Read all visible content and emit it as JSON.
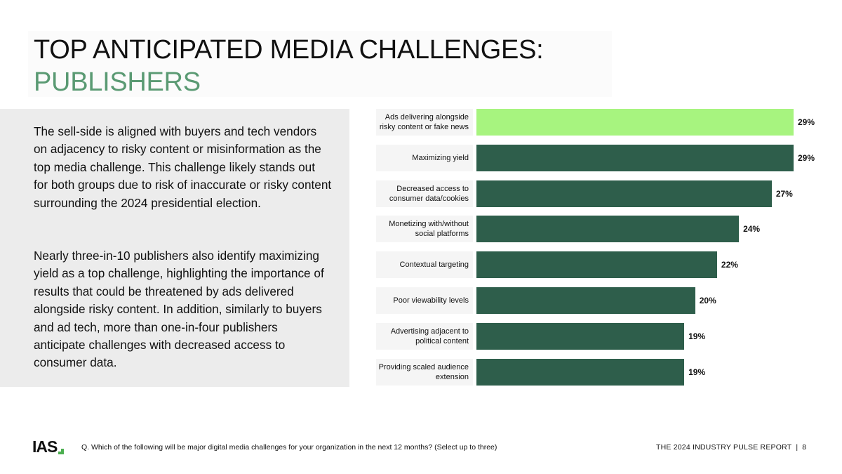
{
  "title": {
    "line1": "TOP ANTICIPATED MEDIA CHALLENGES:",
    "line2": "PUBLISHERS"
  },
  "body": {
    "paragraph1": "The sell-side is aligned with buyers and tech vendors on adjacency to risky content or misinformation as the top media challenge. This challenge likely stands out for both groups due to risk of inaccurate or risky content surrounding the 2024 presidential election.",
    "paragraph2": "Nearly three-in-10 publishers also identify maximizing yield as a top challenge, highlighting the importance of results that could be threatened by ads delivered alongside risky content. In addition, similarly to buyers and ad tech, more than one-in-four publishers anticipate challenges with decreased access to consumer data."
  },
  "chart_data": {
    "type": "bar",
    "orientation": "horizontal",
    "categories": [
      "Ads delivering alongside risky content or fake news",
      "Maximizing yield",
      "Decreased access to consumer data/cookies",
      "Monetizing with/without social platforms",
      "Contextual targeting",
      "Poor viewability levels",
      "Advertising adjacent to political content",
      "Providing scaled audience extension"
    ],
    "values": [
      29,
      29,
      27,
      24,
      22,
      20,
      19,
      19
    ],
    "value_labels": [
      "29%",
      "29%",
      "27%",
      "24%",
      "22%",
      "20%",
      "19%",
      "19%"
    ],
    "unit": "%",
    "xlim": [
      0,
      29
    ],
    "highlight_index": 0,
    "grid": false,
    "colors": {
      "highlight": "#a7f47f",
      "default": "#2e5e4b"
    }
  },
  "footer": {
    "logo_text": "IAS",
    "question": "Q. Which of the following will be major digital media challenges for your organization in the next 12 months? (Select up to three)",
    "report_title": "THE 2024 INDUSTRY PULSE REPORT",
    "separator": "|",
    "page_number": "8"
  },
  "colors": {
    "title_accent": "#5a9a73",
    "text_panel_bg": "#ececec"
  }
}
